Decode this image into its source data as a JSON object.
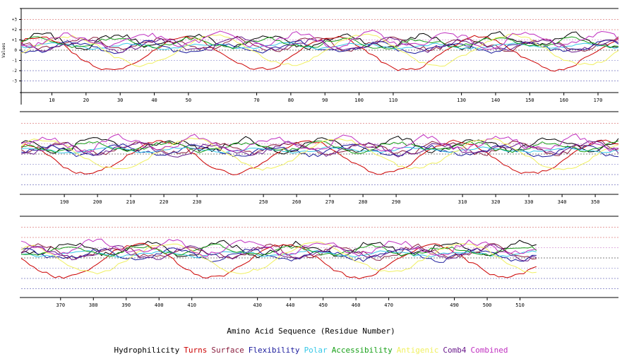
{
  "chart_data": {
    "type": "line",
    "ylabel": "Values",
    "xlabel": "Amino Acid Sequence (Residue Number)",
    "y_ticks": [
      "+3",
      "+2",
      "+1",
      "0",
      "-1",
      "-2",
      "-3"
    ],
    "panels": [
      {
        "x_ticks": [
          10,
          20,
          30,
          40,
          50,
          70,
          80,
          90,
          100,
          110,
          130,
          140,
          150,
          160,
          170
        ],
        "x_range": [
          1,
          176
        ]
      },
      {
        "x_ticks": [
          190,
          200,
          210,
          220,
          230,
          250,
          260,
          270,
          280,
          290,
          310,
          320,
          330,
          340,
          350
        ],
        "x_range": [
          177,
          357
        ]
      },
      {
        "x_ticks": [
          370,
          380,
          390,
          400,
          410,
          430,
          440,
          450,
          460,
          470,
          490,
          500,
          510
        ],
        "x_range": [
          358,
          540
        ],
        "data_end": 515
      }
    ],
    "series": [
      {
        "name": "Hydrophilicity",
        "color": "#000000"
      },
      {
        "name": "Turns",
        "color": "#cc0000"
      },
      {
        "name": "Surface",
        "color": "#8b2040"
      },
      {
        "name": "Flexibility",
        "color": "#1a1a9c"
      },
      {
        "name": "Polar",
        "color": "#36c8e8"
      },
      {
        "name": "Accessibility",
        "color": "#18a018"
      },
      {
        "name": "Antigenic",
        "color": "#f0f060"
      },
      {
        "name": "Comb4",
        "color": "#6a1a8c"
      },
      {
        "name": "Combined",
        "color": "#c030c0"
      }
    ],
    "grid_colors": [
      "#d04040",
      "#d04040",
      "#c060c0",
      "#000000",
      "#7070c0",
      "#3030a0",
      "#3030a0"
    ]
  }
}
